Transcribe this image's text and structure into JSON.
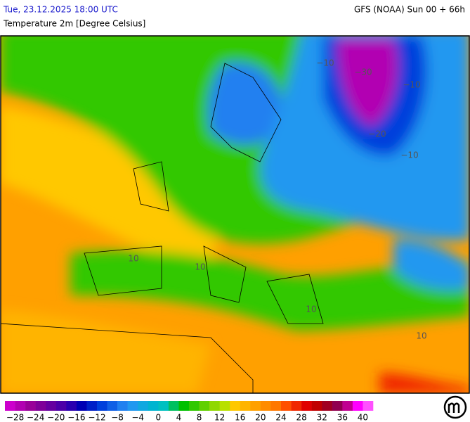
{
  "header": {
    "datetime": "Tue, 23.12.2025 18:00 UTC",
    "model": "GFS (NOAA) Sun 00 + 66h",
    "parameter": "Temperature 2m [Degree Celsius]"
  },
  "map": {
    "contour_labels": [
      "−30",
      "−20",
      "−10",
      "−10",
      "−10",
      "10",
      "10",
      "10",
      "10"
    ]
  },
  "legend": {
    "colors": [
      "#cc00cc",
      "#b200b2",
      "#990099",
      "#7f0099",
      "#6600a0",
      "#4c00a8",
      "#2a00b0",
      "#0000b4",
      "#0020c8",
      "#0040dc",
      "#1060e6",
      "#2080f0",
      "#2098f0",
      "#10a8e0",
      "#00b4d0",
      "#00c0c0",
      "#00c060",
      "#00c000",
      "#30c800",
      "#60d000",
      "#90d800",
      "#b8e000",
      "#ffc800",
      "#ffb400",
      "#ffa000",
      "#ff8c00",
      "#ff7800",
      "#ff5000",
      "#f02800",
      "#e00000",
      "#c00000",
      "#a00020",
      "#900050",
      "#c00090",
      "#ff00ff",
      "#ff50ff"
    ],
    "labels": [
      "−28",
      "−24",
      "−20",
      "−16",
      "−12",
      "−8",
      "−4",
      "0",
      "4",
      "8",
      "12",
      "16",
      "20",
      "24",
      "28",
      "32",
      "36",
      "40"
    ]
  }
}
